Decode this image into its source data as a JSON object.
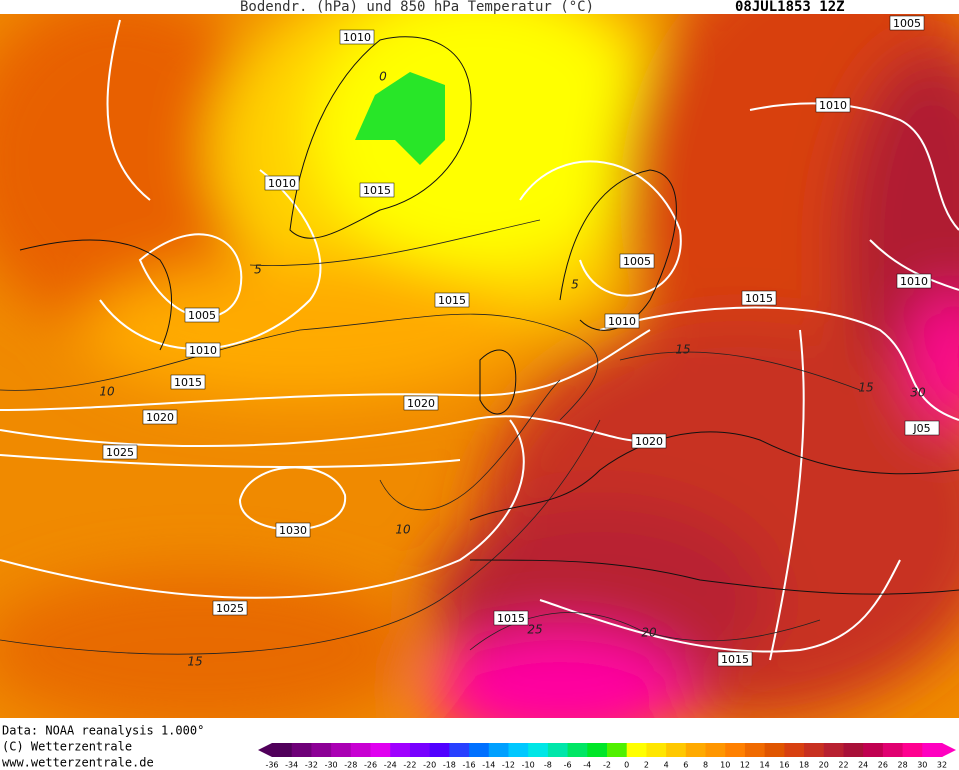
{
  "header": {
    "title": "Bodendr. (hPa) und 850 hPa Temperatur (°C)",
    "date": "08JUL1853 12Z"
  },
  "isobar_labels": [
    "1010",
    "1010",
    "1015",
    "1005",
    "1005",
    "1010",
    "1015",
    "1015",
    "1010",
    "1015",
    "1010",
    "1005",
    "1010",
    "1020",
    "1025",
    "1020",
    "1020",
    "1030",
    "1025",
    "1015",
    "1015",
    "J05"
  ],
  "isotherm_labels": [
    "0",
    "5",
    "5",
    "10",
    "10",
    "15",
    "15",
    "30",
    "20",
    "25",
    "15"
  ],
  "footer": {
    "source": "Data: NOAA reanalysis 1.000°",
    "copyright": "(C) Wetterzentrale",
    "url": "www.wetterzentrale.de"
  },
  "colorbar": {
    "labels": [
      -36,
      -34,
      -32,
      -30,
      -28,
      -26,
      -24,
      -22,
      -20,
      -18,
      -16,
      -14,
      -12,
      -10,
      -8,
      -6,
      -4,
      -2,
      0,
      2,
      4,
      6,
      8,
      10,
      12,
      14,
      16,
      18,
      20,
      22,
      24,
      26,
      28,
      30,
      32
    ],
    "colors": [
      "#50005a",
      "#6e0078",
      "#8c0096",
      "#aa00b4",
      "#c800d2",
      "#e000f0",
      "#a000ff",
      "#7800ff",
      "#5000ff",
      "#2840ff",
      "#0070ff",
      "#00a0ff",
      "#00c8ff",
      "#00e6e6",
      "#00e6aa",
      "#00e664",
      "#00e628",
      "#50f000",
      "#ffff00",
      "#ffe600",
      "#ffc800",
      "#ffaa00",
      "#ff9600",
      "#ff8000",
      "#f06a00",
      "#e05500",
      "#d84010",
      "#c83020",
      "#b82030",
      "#a81038",
      "#c00050",
      "#e00070",
      "#ff0090",
      "#ff00c0"
    ]
  }
}
